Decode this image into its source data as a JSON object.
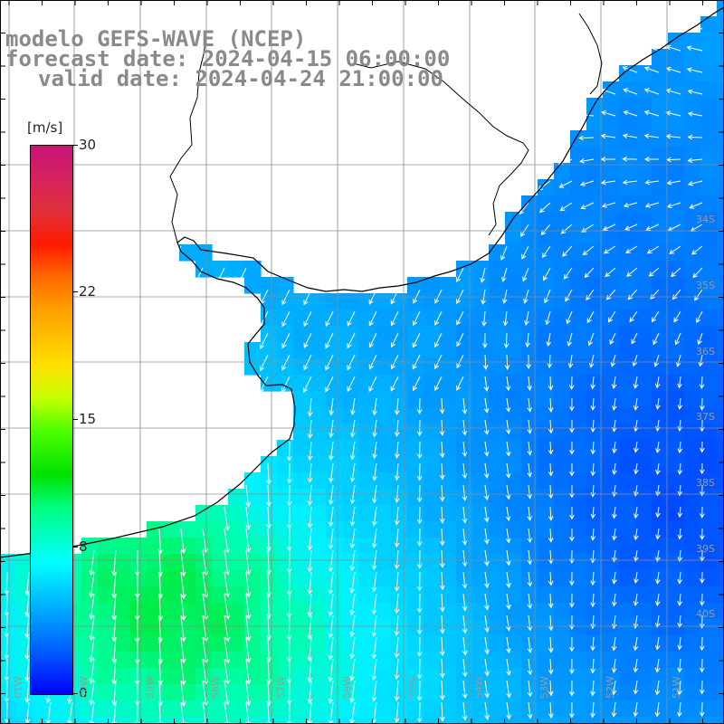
{
  "title": {
    "line1": "modelo GEFS-WAVE (NCEP)",
    "line2": "forecast date: 2024-04-15 06:00:00",
    "line3": "valid date: 2024-04-24 21:00:00"
  },
  "colorbar": {
    "unit": "[m/s]",
    "ticks": [
      {
        "label": "30",
        "value": 30
      },
      {
        "label": "22",
        "value": 22
      },
      {
        "label": "15",
        "value": 15
      },
      {
        "label": "8",
        "value": 8
      },
      {
        "label": "0",
        "value": 0
      }
    ],
    "min": 0,
    "max": 30
  },
  "lat_labels": [
    "34S",
    "35S",
    "36S",
    "37S",
    "38S",
    "39S",
    "40S"
  ],
  "lon_labels": [
    "61W",
    "60W",
    "59W",
    "58W",
    "57W",
    "56W",
    "55W",
    "54W",
    "53W",
    "52W",
    "51W"
  ],
  "colors": {
    "land": "#ffffff",
    "coast": "#000000",
    "grid": "#8c8c8c",
    "title": "#8a8a8a",
    "arrow": "#ffffff",
    "ocean_low": "#0050ff",
    "ocean_mid": "#00ccff",
    "ocean_high": "#00e000"
  },
  "field": {
    "variable": "wind speed",
    "arrow_direction": "wind direction vectors",
    "range": [
      0,
      30
    ]
  }
}
